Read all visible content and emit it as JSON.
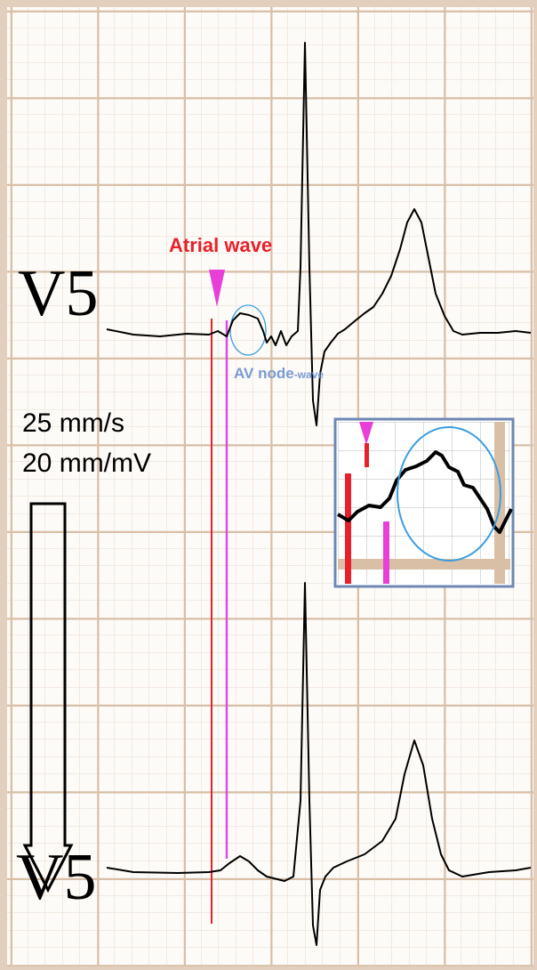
{
  "labels": {
    "atrial_wave": "Atrial wave",
    "av_node": "AV node",
    "av_wave": "-wave",
    "lead_top": "V5",
    "lead_bottom": "V5",
    "speed": "25 mm/s",
    "gain": "20 mm/mV"
  }
}
